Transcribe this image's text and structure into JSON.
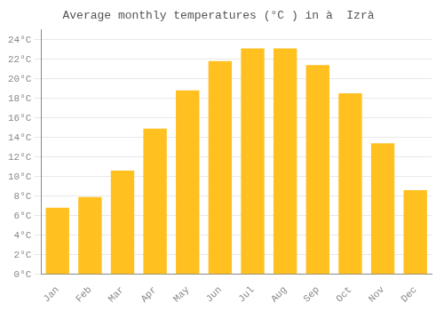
{
  "chart_data": {
    "type": "bar",
    "title": "Average monthly temperatures (°C ) in à  Izrà",
    "categories": [
      "Jan",
      "Feb",
      "Mar",
      "Apr",
      "May",
      "Jun",
      "Jul",
      "Aug",
      "Sep",
      "Oct",
      "Nov",
      "Dec"
    ],
    "values": [
      6.8,
      7.9,
      10.6,
      14.9,
      18.8,
      21.8,
      23.1,
      23.1,
      21.4,
      18.5,
      13.4,
      8.6
    ],
    "color": "#FFC020",
    "ylim": [
      0,
      25
    ],
    "yticks": [
      {
        "value": 0,
        "label": "0°C"
      },
      {
        "value": 2,
        "label": "2°C"
      },
      {
        "value": 4,
        "label": "4°C"
      },
      {
        "value": 6,
        "label": "6°C"
      },
      {
        "value": 8,
        "label": "8°C"
      },
      {
        "value": 10,
        "label": "10°C"
      },
      {
        "value": 12,
        "label": "12°C"
      },
      {
        "value": 14,
        "label": "14°C"
      },
      {
        "value": 16,
        "label": "16°C"
      },
      {
        "value": 18,
        "label": "18°C"
      },
      {
        "value": 20,
        "label": "20°C"
      },
      {
        "value": 22,
        "label": "22°C"
      },
      {
        "value": 24,
        "label": "24°C"
      }
    ],
    "grid": true
  }
}
